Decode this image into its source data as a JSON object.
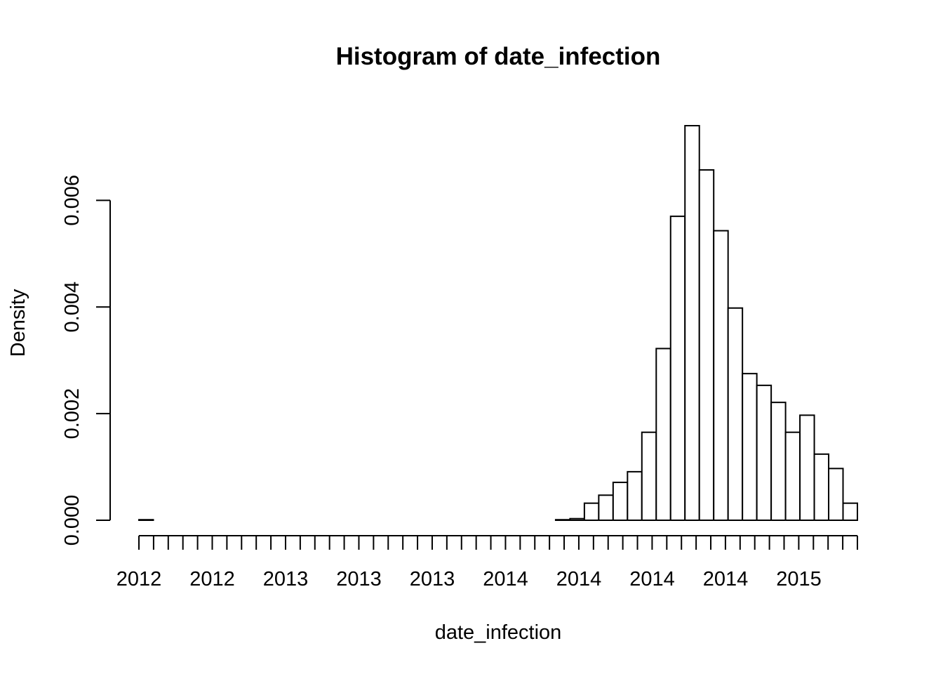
{
  "chart_data": {
    "type": "bar",
    "title": "Histogram of date_infection",
    "xlabel": "date_infection",
    "ylabel": "Density",
    "ylim": [
      0,
      0.0074
    ],
    "y_ticks": [
      0.0,
      0.002,
      0.004,
      0.006
    ],
    "y_tick_labels": [
      "0.000",
      "0.002",
      "0.004",
      "0.006"
    ],
    "x_tick_labels": [
      "2012",
      "2012",
      "2013",
      "2013",
      "2013",
      "2014",
      "2014",
      "2014",
      "2014",
      "2015"
    ],
    "x_tick_count": 50,
    "grid": false,
    "legend": "none",
    "bar_fill": "#ffffff",
    "bar_stroke": "#000000",
    "values": [
      1e-05,
      0,
      0,
      0,
      0,
      0,
      0,
      0,
      0,
      0,
      0,
      0,
      0,
      0,
      0,
      0,
      0,
      0,
      0,
      0,
      0,
      0,
      0,
      0,
      0,
      0,
      0,
      0,
      0,
      1e-05,
      3e-05,
      0.00032,
      0.00047,
      0.00071,
      0.00091,
      0.00165,
      0.00322,
      0.0057,
      0.0074,
      0.00657,
      0.00543,
      0.00398,
      0.00275,
      0.00253,
      0.00221,
      0.00165,
      0.00197,
      0.00124,
      0.00097,
      0.00032
    ]
  }
}
